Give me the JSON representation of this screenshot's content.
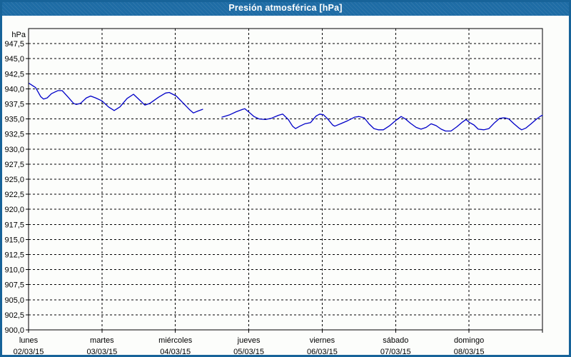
{
  "window": {
    "title": "Presión atmosférica [hPa]"
  },
  "colors": {
    "frame": "#176399",
    "titlebar_bg": "#1e6ca5",
    "titlebar_text": "#ffffff",
    "background": "#fcfdfb",
    "axis": "#000000",
    "grid": "#000000",
    "line": "#0000c8"
  },
  "chart_data": {
    "type": "line",
    "title": "Presión atmosférica [hPa]",
    "y_unit_label": "hPa",
    "ylabel": "",
    "xlabel": "",
    "ylim": [
      900,
      950
    ],
    "y_tick_step": 2.5,
    "y_ticks": [
      947.5,
      945.0,
      942.5,
      940.0,
      937.5,
      935.0,
      932.5,
      930.0,
      927.5,
      925.0,
      922.5,
      920.0,
      917.5,
      915.0,
      912.5,
      910.0,
      907.5,
      905.0,
      902.5,
      900.0
    ],
    "y_tick_labels": [
      "947,5",
      "945,0",
      "942,5",
      "940,0",
      "937,5",
      "935,0",
      "932,5",
      "930,0",
      "927,5",
      "925,0",
      "922,5",
      "920,0",
      "917,5",
      "915,0",
      "912,5",
      "910,0",
      "907,5",
      "905,0",
      "902,5",
      "900,0"
    ],
    "x_hours_total": 168,
    "hours_per_day": 24,
    "grid": "dashed",
    "days": [
      {
        "name": "lunes",
        "date": "02/03/15"
      },
      {
        "name": "martes",
        "date": "03/03/15"
      },
      {
        "name": "miércoles",
        "date": "04/03/15"
      },
      {
        "name": "jueves",
        "date": "05/03/15"
      },
      {
        "name": "viernes",
        "date": "06/03/15"
      },
      {
        "name": "sábado",
        "date": "07/03/15"
      },
      {
        "name": "domingo",
        "date": "08/03/15"
      }
    ],
    "series": [
      {
        "name": "Presión atmosférica",
        "unit": "hPa",
        "color": "#0000c8",
        "segments": [
          [
            [
              0.2,
              940.9
            ],
            [
              2.3,
              940.2
            ],
            [
              4.0,
              938.7
            ],
            [
              4.9,
              938.3
            ],
            [
              6.1,
              938.5
            ],
            [
              7.5,
              939.2
            ],
            [
              9.6,
              939.7
            ],
            [
              11.0,
              939.7
            ],
            [
              12.8,
              938.7
            ],
            [
              14.7,
              937.6
            ],
            [
              15.6,
              937.4
            ],
            [
              17.0,
              937.6
            ],
            [
              18.9,
              938.5
            ],
            [
              20.3,
              938.8
            ],
            [
              21.9,
              938.5
            ],
            [
              24.0,
              938.0
            ],
            [
              26.1,
              937.0
            ],
            [
              28.0,
              936.4
            ],
            [
              29.9,
              937.0
            ],
            [
              32.2,
              938.4
            ],
            [
              34.3,
              939.1
            ],
            [
              36.2,
              938.2
            ],
            [
              38.0,
              937.3
            ],
            [
              39.7,
              937.6
            ],
            [
              42.5,
              938.6
            ],
            [
              44.8,
              939.3
            ],
            [
              46.0,
              939.4
            ],
            [
              48.3,
              938.8
            ],
            [
              50.6,
              937.6
            ],
            [
              52.7,
              936.5
            ],
            [
              53.9,
              936.0
            ],
            [
              55.3,
              936.3
            ],
            [
              56.9,
              936.6
            ]
          ],
          [
            [
              63.2,
              935.3
            ],
            [
              65.8,
              935.7
            ],
            [
              67.9,
              936.2
            ],
            [
              70.0,
              936.6
            ],
            [
              70.7,
              936.7
            ],
            [
              72.1,
              936.1
            ],
            [
              73.7,
              935.4
            ],
            [
              75.4,
              935.0
            ],
            [
              77.5,
              934.9
            ],
            [
              79.3,
              935.1
            ],
            [
              81.7,
              935.6
            ],
            [
              83.1,
              935.8
            ],
            [
              84.9,
              934.9
            ],
            [
              86.3,
              933.8
            ],
            [
              87.3,
              933.4
            ],
            [
              88.7,
              933.8
            ],
            [
              90.3,
              934.2
            ],
            [
              92.2,
              934.4
            ],
            [
              94.0,
              935.5
            ],
            [
              95.2,
              935.8
            ],
            [
              96.4,
              935.7
            ],
            [
              97.8,
              935.0
            ],
            [
              99.4,
              934.0
            ],
            [
              100.1,
              933.8
            ],
            [
              102.0,
              934.2
            ],
            [
              104.3,
              934.7
            ],
            [
              106.6,
              935.3
            ],
            [
              108.0,
              935.4
            ],
            [
              109.7,
              935.2
            ],
            [
              111.3,
              934.2
            ],
            [
              112.9,
              933.4
            ],
            [
              114.3,
              933.2
            ],
            [
              116.0,
              933.2
            ],
            [
              118.1,
              933.9
            ],
            [
              120.2,
              934.8
            ],
            [
              121.8,
              935.4
            ],
            [
              123.2,
              935.0
            ],
            [
              124.8,
              934.3
            ],
            [
              126.7,
              933.6
            ],
            [
              128.3,
              933.3
            ],
            [
              130.0,
              933.6
            ],
            [
              131.6,
              934.2
            ],
            [
              133.2,
              933.9
            ],
            [
              134.9,
              933.3
            ],
            [
              136.3,
              933.0
            ],
            [
              138.1,
              933.0
            ],
            [
              140.0,
              933.7
            ],
            [
              141.9,
              934.5
            ],
            [
              143.0,
              934.9
            ],
            [
              144.2,
              934.4
            ],
            [
              145.6,
              934.0
            ],
            [
              147.0,
              933.3
            ],
            [
              148.9,
              933.2
            ],
            [
              150.5,
              933.4
            ],
            [
              152.4,
              934.4
            ],
            [
              154.0,
              935.1
            ],
            [
              155.6,
              935.2
            ],
            [
              157.0,
              935.0
            ],
            [
              158.7,
              934.2
            ],
            [
              160.3,
              933.5
            ],
            [
              161.2,
              933.2
            ],
            [
              162.6,
              933.5
            ],
            [
              164.3,
              934.2
            ],
            [
              166.1,
              935.0
            ],
            [
              167.5,
              935.5
            ],
            [
              168.0,
              935.6
            ]
          ]
        ]
      }
    ]
  }
}
